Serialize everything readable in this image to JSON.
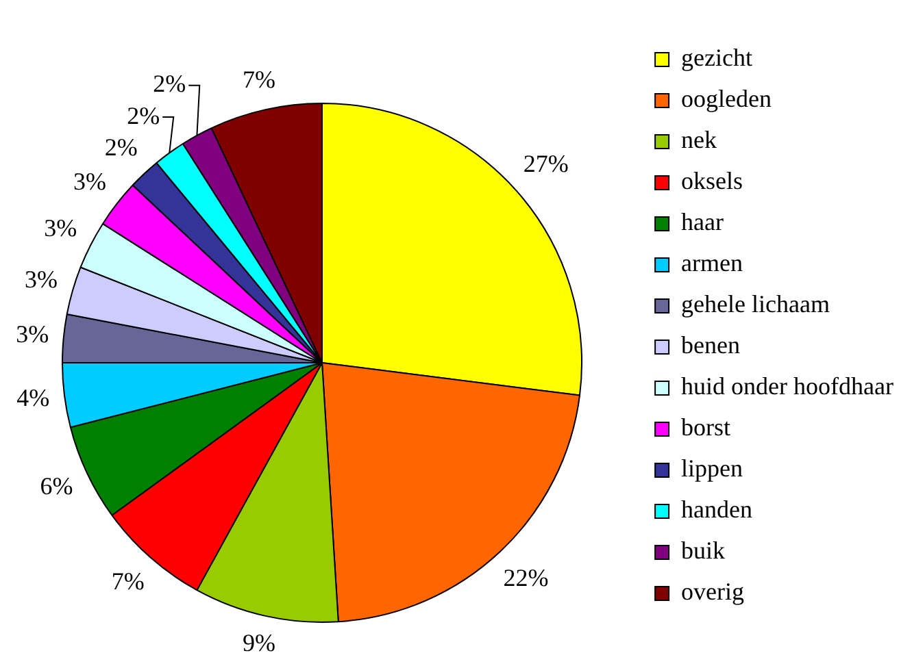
{
  "chart_data": {
    "type": "pie",
    "categories": [
      "gezicht",
      "oogleden",
      "nek",
      "oksels",
      "haar",
      "armen",
      "gehele lichaam",
      "benen",
      "huid onder hoofdhaar",
      "borst",
      "lippen",
      "handen",
      "buik",
      "overig"
    ],
    "values": [
      27,
      22,
      9,
      7,
      6,
      4,
      3,
      3,
      3,
      3,
      2,
      2,
      2,
      7
    ],
    "colors": [
      "#ffff00",
      "#ff6600",
      "#99cc00",
      "#ff0000",
      "#008000",
      "#00ccff",
      "#666699",
      "#ccccff",
      "#ccffff",
      "#ff00ff",
      "#333399",
      "#00ffff",
      "#800080",
      "#800000"
    ],
    "value_labels": [
      "27%",
      "22%",
      "9%",
      "7%",
      "6%",
      "4%",
      "3%",
      "3%",
      "3%",
      "3%",
      "2%",
      "2%",
      "2%",
      "7%"
    ],
    "legend": "right"
  }
}
